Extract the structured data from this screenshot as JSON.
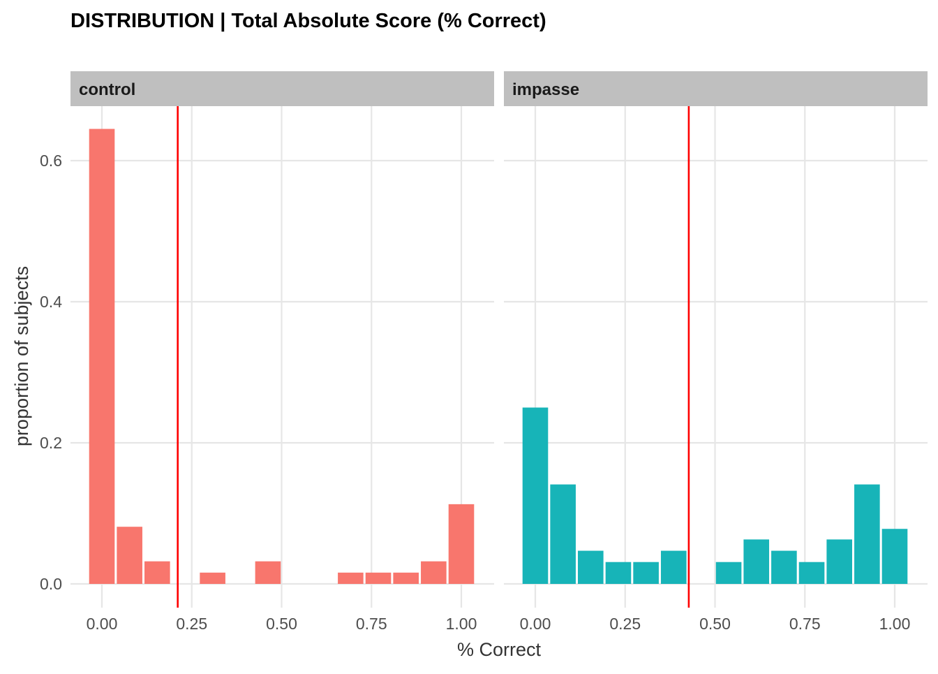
{
  "chart_data": {
    "type": "bar",
    "title": "DISTRIBUTION | Total Absolute Score (% Correct)",
    "xlabel": "% Correct",
    "ylabel": "proportion of subjects",
    "xlim": [
      -0.05,
      1.05
    ],
    "ylim": [
      0,
      0.67
    ],
    "x_ticks": [
      0,
      0.25,
      0.5,
      0.75,
      1.0
    ],
    "x_tick_labels": [
      "0.00",
      "0.25",
      "0.50",
      "0.75",
      "1.00"
    ],
    "y_ticks": [
      0,
      0.2,
      0.4,
      0.6
    ],
    "y_tick_labels": [
      "0.0",
      "0.2",
      "0.4",
      "0.6"
    ],
    "bin_width": 0.0769,
    "grid": true,
    "legend": "none",
    "panels": [
      {
        "name": "control",
        "color": "#F8766D",
        "mean_line": 0.211,
        "mean_line_color": "#FF0000",
        "bins": [
          {
            "x": 0.0,
            "y": 0.645
          },
          {
            "x": 0.077,
            "y": 0.081
          },
          {
            "x": 0.154,
            "y": 0.032
          },
          {
            "x": 0.308,
            "y": 0.016
          },
          {
            "x": 0.462,
            "y": 0.032
          },
          {
            "x": 0.692,
            "y": 0.016
          },
          {
            "x": 0.769,
            "y": 0.016
          },
          {
            "x": 0.846,
            "y": 0.016
          },
          {
            "x": 0.923,
            "y": 0.032
          },
          {
            "x": 1.0,
            "y": 0.113
          }
        ]
      },
      {
        "name": "impasse",
        "color": "#17B4B8",
        "mean_line": 0.427,
        "mean_line_color": "#FF0000",
        "bins": [
          {
            "x": 0.0,
            "y": 0.25
          },
          {
            "x": 0.077,
            "y": 0.141
          },
          {
            "x": 0.154,
            "y": 0.047
          },
          {
            "x": 0.231,
            "y": 0.031
          },
          {
            "x": 0.308,
            "y": 0.031
          },
          {
            "x": 0.385,
            "y": 0.047
          },
          {
            "x": 0.538,
            "y": 0.031
          },
          {
            "x": 0.615,
            "y": 0.063
          },
          {
            "x": 0.692,
            "y": 0.047
          },
          {
            "x": 0.769,
            "y": 0.031
          },
          {
            "x": 0.846,
            "y": 0.063
          },
          {
            "x": 0.923,
            "y": 0.141
          },
          {
            "x": 1.0,
            "y": 0.078
          }
        ]
      }
    ]
  }
}
